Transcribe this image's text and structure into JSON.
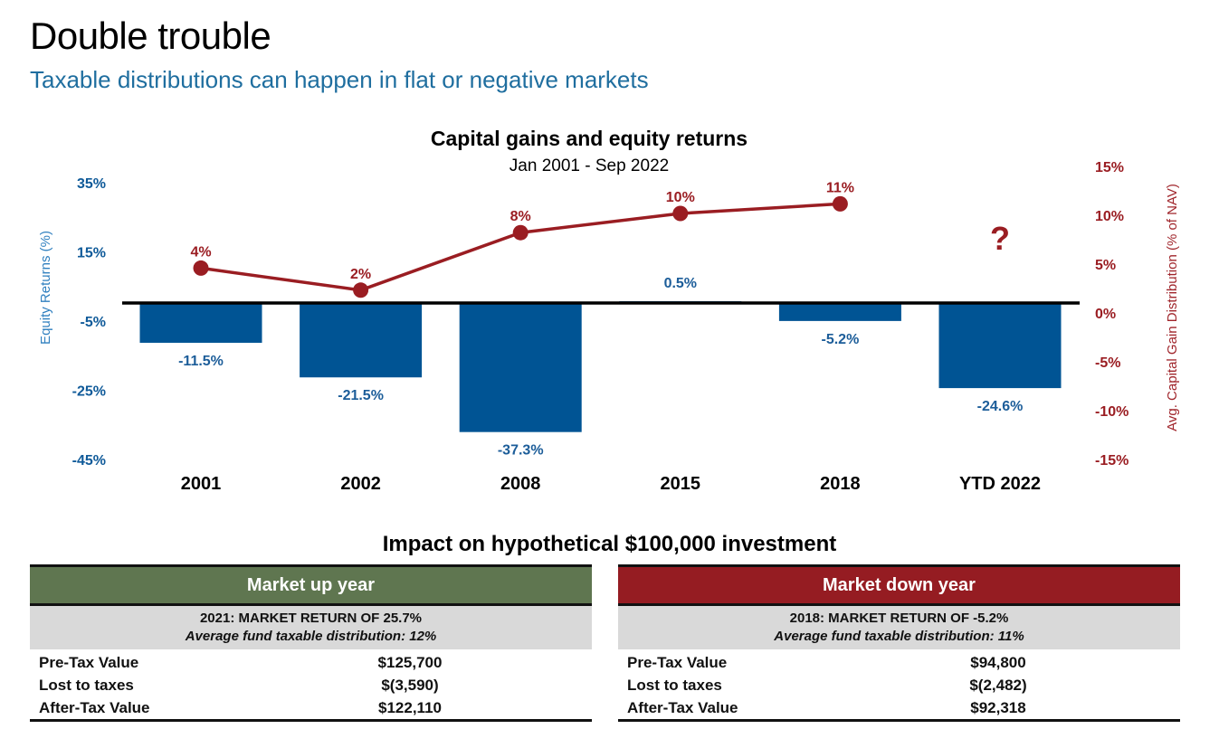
{
  "header": {
    "title": "Double trouble",
    "subtitle": "Taxable distributions can happen in flat or negative markets"
  },
  "colors": {
    "equity_bar": "#005494",
    "cap_gain_line": "#9a1d22",
    "market_up_header": "#5f7650",
    "market_down_header": "#951c22",
    "band_gray": "#d9d9d9",
    "subtitle_blue": "#1f6e9f"
  },
  "chart_data": {
    "type": "bar",
    "title": "Capital gains and equity returns",
    "subtitle": "Jan 2001 - Sep 2022",
    "categories": [
      "2001",
      "2002",
      "2008",
      "2015",
      "2018",
      "YTD 2022"
    ],
    "series": [
      {
        "name": "Equity Returns (%)",
        "type": "bar",
        "axis": "left",
        "values": [
          -11.5,
          -21.5,
          -37.3,
          0.5,
          -5.2,
          -24.6
        ],
        "labels": [
          "-11.5%",
          "-21.5%",
          "-37.3%",
          "0.5%",
          "-5.2%",
          "-24.6%"
        ]
      },
      {
        "name": "Avg. Capital Gain Distribution (% of NAV)",
        "type": "line",
        "axis": "right",
        "values": [
          4,
          2,
          8,
          10,
          11,
          null
        ],
        "labels": [
          "4%",
          "2%",
          "8%",
          "10%",
          "11%",
          "?"
        ]
      }
    ],
    "ylabel_left": "Equity Returns (%)",
    "ylabel_right": "Avg. Capital Gain Distribution (% of NAV)",
    "ylim_left": [
      -45,
      35
    ],
    "yticks_left": [
      "35%",
      "15%",
      "-5%",
      "-25%",
      "-45%"
    ],
    "yticks_left_values": [
      35,
      15,
      -5,
      -25,
      -45
    ],
    "ylim_right": [
      -15,
      15
    ],
    "yticks_right": [
      "15%",
      "10%",
      "5%",
      "0%",
      "-5%",
      "-10%",
      "-15%"
    ],
    "yticks_right_values": [
      15,
      10,
      5,
      0,
      -5,
      -10,
      -15
    ],
    "unknown_marker": "?",
    "grid": false,
    "legend": "none"
  },
  "impact": {
    "title": "Impact on hypothetical $100,000 investment",
    "panels": [
      {
        "header": "Market up year",
        "line1": "2021: MARKET RETURN OF 25.7%",
        "line2": "Average fund taxable distribution: 12%",
        "rows": [
          {
            "label": "Pre-Tax Value",
            "value": "$125,700"
          },
          {
            "label": "Lost to taxes",
            "value": "$(3,590)"
          },
          {
            "label": "After-Tax Value",
            "value": "$122,110"
          }
        ]
      },
      {
        "header": "Market down year",
        "line1": "2018: MARKET RETURN OF -5.2%",
        "line2": "Average fund taxable distribution: 11%",
        "rows": [
          {
            "label": "Pre-Tax Value",
            "value": "$94,800"
          },
          {
            "label": "Lost to taxes",
            "value": "$(2,482)"
          },
          {
            "label": "After-Tax Value",
            "value": "$92,318"
          }
        ]
      }
    ]
  }
}
